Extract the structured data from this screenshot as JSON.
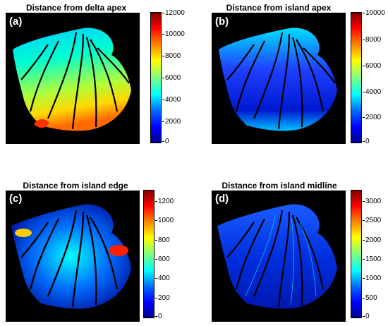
{
  "panels": [
    {
      "label": "(a)",
      "title": "Distance from delta apex",
      "ticks": [
        "12000",
        "10000",
        "8000",
        "6000",
        "4000",
        "2000",
        "0"
      ],
      "scheme": "apex"
    },
    {
      "label": "(b)",
      "title": "Distance from island apex",
      "ticks": [
        "10000",
        "8000",
        "6000",
        "4000",
        "2000",
        "0"
      ],
      "scheme": "island"
    },
    {
      "label": "(c)",
      "title": "Distance from island edge",
      "ticks": [
        "1200",
        "1000",
        "800",
        "600",
        "400",
        "200",
        "0"
      ],
      "scheme": "edge"
    },
    {
      "label": "(d)",
      "title": "Distance from island midline",
      "ticks": [
        "3000",
        "2500",
        "2000",
        "1500",
        "1000",
        "500",
        "0"
      ],
      "scheme": "midline"
    }
  ]
}
